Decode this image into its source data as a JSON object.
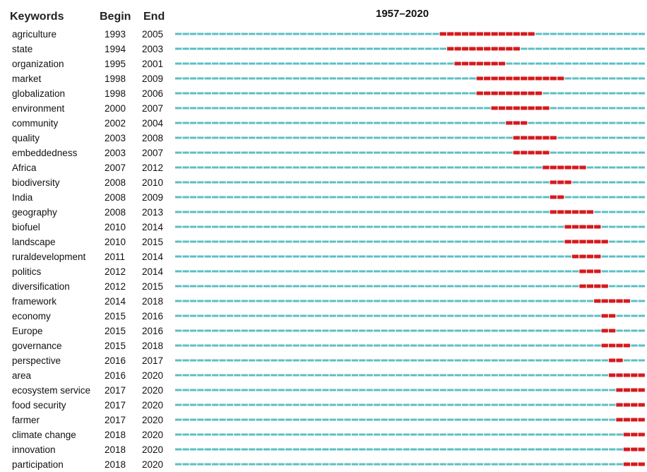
{
  "chart_data": {
    "type": "burst-timeline",
    "title": "1957–2020",
    "headers": {
      "keywords": "Keywords",
      "begin": "Begin",
      "end": "End"
    },
    "x_range": [
      1957,
      2020
    ],
    "colors": {
      "timeline": "#5bbfc4",
      "burst": "#d7191c",
      "text": "#111111"
    },
    "rows": [
      {
        "keyword": "agriculture",
        "begin": 1993,
        "end": 2005
      },
      {
        "keyword": "state",
        "begin": 1994,
        "end": 2003
      },
      {
        "keyword": "organization",
        "begin": 1995,
        "end": 2001
      },
      {
        "keyword": "market",
        "begin": 1998,
        "end": 2009
      },
      {
        "keyword": "globalization",
        "begin": 1998,
        "end": 2006
      },
      {
        "keyword": "environment",
        "begin": 2000,
        "end": 2007
      },
      {
        "keyword": "community",
        "begin": 2002,
        "end": 2004
      },
      {
        "keyword": "quality",
        "begin": 2003,
        "end": 2008
      },
      {
        "keyword": "embeddedness",
        "begin": 2003,
        "end": 2007
      },
      {
        "keyword": "Africa",
        "begin": 2007,
        "end": 2012
      },
      {
        "keyword": "biodiversity",
        "begin": 2008,
        "end": 2010
      },
      {
        "keyword": "India",
        "begin": 2008,
        "end": 2009
      },
      {
        "keyword": "geography",
        "begin": 2008,
        "end": 2013
      },
      {
        "keyword": "biofuel",
        "begin": 2010,
        "end": 2014
      },
      {
        "keyword": "landscape",
        "begin": 2010,
        "end": 2015
      },
      {
        "keyword": "ruraldevelopment",
        "begin": 2011,
        "end": 2014
      },
      {
        "keyword": "politics",
        "begin": 2012,
        "end": 2014
      },
      {
        "keyword": "diversification",
        "begin": 2012,
        "end": 2015
      },
      {
        "keyword": "framework",
        "begin": 2014,
        "end": 2018
      },
      {
        "keyword": "economy",
        "begin": 2015,
        "end": 2016
      },
      {
        "keyword": "Europe",
        "begin": 2015,
        "end": 2016
      },
      {
        "keyword": "governance",
        "begin": 2015,
        "end": 2018
      },
      {
        "keyword": "perspective",
        "begin": 2016,
        "end": 2017
      },
      {
        "keyword": "area",
        "begin": 2016,
        "end": 2020
      },
      {
        "keyword": "ecosystem service",
        "begin": 2017,
        "end": 2020
      },
      {
        "keyword": "food security",
        "begin": 2017,
        "end": 2020
      },
      {
        "keyword": "farmer",
        "begin": 2017,
        "end": 2020
      },
      {
        "keyword": "climate change",
        "begin": 2018,
        "end": 2020
      },
      {
        "keyword": "innovation",
        "begin": 2018,
        "end": 2020
      },
      {
        "keyword": "participation",
        "begin": 2018,
        "end": 2020
      }
    ]
  }
}
